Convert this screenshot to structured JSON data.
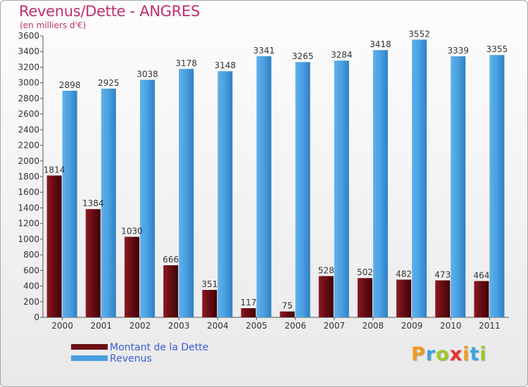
{
  "page": {
    "title": "Revenus/Dette - ANGRES",
    "unit": "(en milliers d'€)"
  },
  "legend": [
    {
      "label": "Montant de la Dette",
      "color": "#6b0d14"
    },
    {
      "label": "Revenus",
      "color": "#4a9fe0"
    }
  ],
  "logo": {
    "text": "Proxiti",
    "letters": [
      {
        "ch": "P",
        "color": "#f29a1f"
      },
      {
        "ch": "r",
        "color": "#3ba6de"
      },
      {
        "ch": "o",
        "color": "#9dc92f"
      },
      {
        "ch": "x",
        "color": "#e8322d"
      },
      {
        "ch": "i",
        "color": "#f29a1f"
      },
      {
        "ch": "t",
        "color": "#3ba6de"
      },
      {
        "ch": "i",
        "color": "#9dc92f"
      }
    ]
  },
  "chart_data": {
    "type": "bar",
    "categories": [
      "2000",
      "2001",
      "2002",
      "2003",
      "2004",
      "2005",
      "2006",
      "2007",
      "2008",
      "2009",
      "2010",
      "2011"
    ],
    "series": [
      {
        "name": "Montant de la Dette",
        "color": "#6b0d14",
        "values": [
          1814,
          1384,
          1030,
          666,
          351,
          117,
          75,
          528,
          502,
          482,
          473,
          464
        ]
      },
      {
        "name": "Revenus",
        "color": "#4a9fe0",
        "values": [
          2898,
          2925,
          3038,
          3178,
          3148,
          3341,
          3265,
          3284,
          3418,
          3552,
          3339,
          3355
        ]
      }
    ],
    "ylim": [
      0,
      3600
    ],
    "yticks": [
      0,
      200,
      400,
      600,
      800,
      1000,
      1200,
      1400,
      1600,
      1800,
      2000,
      2200,
      2400,
      2600,
      2800,
      3000,
      3200,
      3400,
      3600
    ],
    "grid": false,
    "legend_position": "bottom-left"
  }
}
